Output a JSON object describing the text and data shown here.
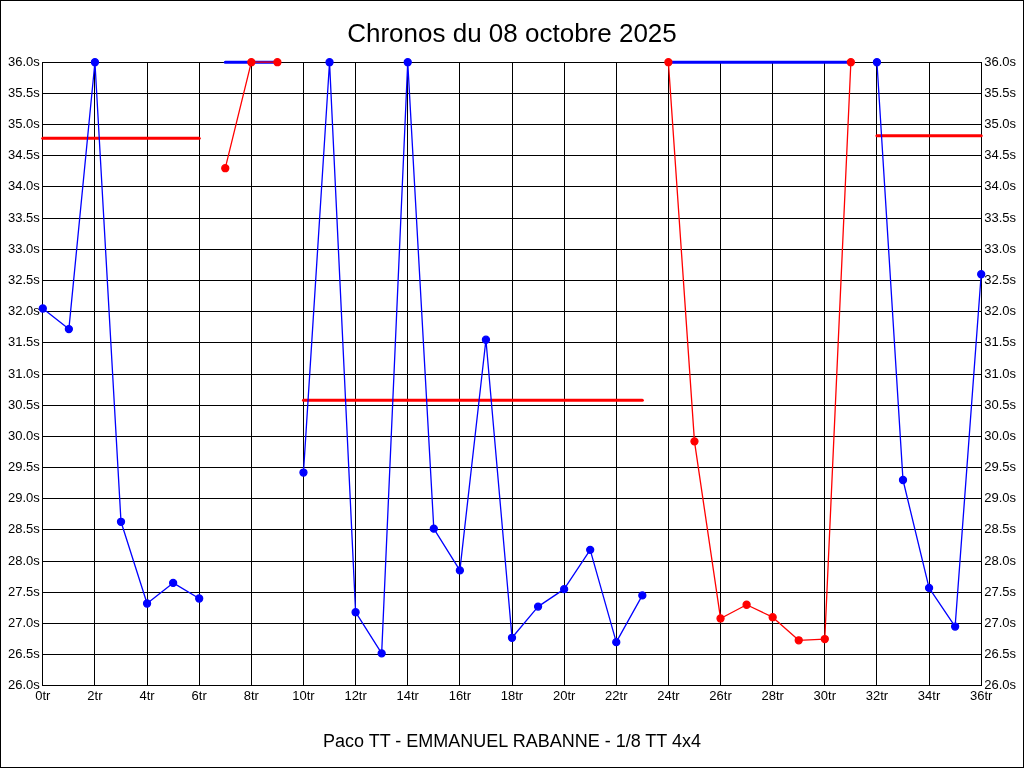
{
  "chart_data": {
    "type": "line",
    "title": "Chronos du 08 octobre 2025",
    "xlabel": "Paco TT - EMMANUEL RABANNE - 1/8 TT 4x4",
    "series": [
      {
        "color": "#0000ff",
        "marker": "circle",
        "x": [
          0,
          1,
          2,
          3,
          4,
          5,
          6,
          7,
          8,
          9,
          10,
          11,
          12,
          13,
          14,
          15,
          16,
          17,
          18,
          19,
          20,
          21,
          22,
          23,
          24,
          25,
          26,
          27,
          28,
          29,
          30,
          31,
          32,
          33,
          34,
          35,
          36
        ],
        "values": [
          32.05,
          31.72,
          36.0,
          28.63,
          27.32,
          27.65,
          27.4,
          null,
          null,
          null,
          29.42,
          36.0,
          27.18,
          26.52,
          36.0,
          28.52,
          27.85,
          31.55,
          26.77,
          27.27,
          27.55,
          28.18,
          26.7,
          27.45,
          null,
          null,
          null,
          null,
          null,
          null,
          null,
          null,
          36.0,
          29.3,
          27.57,
          26.95,
          32.6
        ]
      },
      {
        "color": "#0000ff",
        "marker": "none",
        "x": [
          7,
          9
        ],
        "values": [
          36.0,
          36.0
        ]
      },
      {
        "color": "#0000ff",
        "marker": "none",
        "x": [
          24,
          31
        ],
        "values": [
          36.0,
          36.0
        ]
      },
      {
        "color": "#ff0000",
        "marker": "circle",
        "x": [
          7,
          8,
          9
        ],
        "values": [
          34.3,
          36.0,
          36.0
        ]
      },
      {
        "color": "#ff0000",
        "marker": "circle",
        "x": [
          24,
          25,
          26,
          27,
          28,
          29,
          30,
          31
        ],
        "values": [
          36.0,
          29.92,
          27.08,
          27.3,
          27.1,
          26.73,
          26.75,
          36.0
        ]
      },
      {
        "color": "#ff0000",
        "marker": "none",
        "x": [
          0,
          6
        ],
        "values": [
          34.78,
          34.78
        ]
      },
      {
        "color": "#ff0000",
        "marker": "none",
        "x": [
          10,
          23
        ],
        "values": [
          30.58,
          30.58
        ]
      },
      {
        "color": "#ff0000",
        "marker": "none",
        "x": [
          32,
          36
        ],
        "values": [
          34.82,
          34.82
        ]
      }
    ],
    "xlim": [
      0,
      36
    ],
    "xticks": [
      {
        "value": 0,
        "label": "0tr"
      },
      {
        "value": 2,
        "label": "2tr"
      },
      {
        "value": 4,
        "label": "4tr"
      },
      {
        "value": 6,
        "label": "6tr"
      },
      {
        "value": 8,
        "label": "8tr"
      },
      {
        "value": 10,
        "label": "10tr"
      },
      {
        "value": 12,
        "label": "12tr"
      },
      {
        "value": 14,
        "label": "14tr"
      },
      {
        "value": 16,
        "label": "16tr"
      },
      {
        "value": 18,
        "label": "18tr"
      },
      {
        "value": 20,
        "label": "20tr"
      },
      {
        "value": 22,
        "label": "22tr"
      },
      {
        "value": 24,
        "label": "24tr"
      },
      {
        "value": 26,
        "label": "26tr"
      },
      {
        "value": 28,
        "label": "28tr"
      },
      {
        "value": 30,
        "label": "30tr"
      },
      {
        "value": 32,
        "label": "32tr"
      },
      {
        "value": 34,
        "label": "34tr"
      },
      {
        "value": 36,
        "label": "36tr"
      }
    ],
    "ylim": [
      26,
      36
    ],
    "yticks": [
      {
        "value": 26,
        "label": "26.0s"
      },
      {
        "value": 26.5,
        "label": "26.5s"
      },
      {
        "value": 27,
        "label": "27.0s"
      },
      {
        "value": 27.5,
        "label": "27.5s"
      },
      {
        "value": 28,
        "label": "28.0s"
      },
      {
        "value": 28.5,
        "label": "28.5s"
      },
      {
        "value": 29,
        "label": "29.0s"
      },
      {
        "value": 29.5,
        "label": "29.5s"
      },
      {
        "value": 30,
        "label": "30.0s"
      },
      {
        "value": 30.5,
        "label": "30.5s"
      },
      {
        "value": 31,
        "label": "31.0s"
      },
      {
        "value": 31.5,
        "label": "31.5s"
      },
      {
        "value": 32,
        "label": "32.0s"
      },
      {
        "value": 32.5,
        "label": "32.5s"
      },
      {
        "value": 33,
        "label": "33.0s"
      },
      {
        "value": 33.5,
        "label": "33.5s"
      },
      {
        "value": 34,
        "label": "34.0s"
      },
      {
        "value": 34.5,
        "label": "34.5s"
      },
      {
        "value": 35,
        "label": "35.0s"
      },
      {
        "value": 35.5,
        "label": "35.5s"
      },
      {
        "value": 36,
        "label": "36.0s"
      }
    ],
    "y2lim": [
      26,
      36
    ],
    "y2ticks": [
      {
        "value": 26,
        "label": "26.0s"
      },
      {
        "value": 26.5,
        "label": "26.5s"
      },
      {
        "value": 27,
        "label": "27.0s"
      },
      {
        "value": 27.5,
        "label": "27.5s"
      },
      {
        "value": 28,
        "label": "28.0s"
      },
      {
        "value": 28.5,
        "label": "28.5s"
      },
      {
        "value": 29,
        "label": "29.0s"
      },
      {
        "value": 29.5,
        "label": "29.5s"
      },
      {
        "value": 30,
        "label": "30.0s"
      },
      {
        "value": 30.5,
        "label": "30.5s"
      },
      {
        "value": 31,
        "label": "31.0s"
      },
      {
        "value": 31.5,
        "label": "31.5s"
      },
      {
        "value": 32,
        "label": "32.0s"
      },
      {
        "value": 32.5,
        "label": "32.5s"
      },
      {
        "value": 33,
        "label": "33.0s"
      },
      {
        "value": 33.5,
        "label": "33.5s"
      },
      {
        "value": 34,
        "label": "34.0s"
      },
      {
        "value": 34.5,
        "label": "34.5s"
      },
      {
        "value": 35,
        "label": "35.0s"
      },
      {
        "value": 35.5,
        "label": "35.5s"
      },
      {
        "value": 36,
        "label": "36.0s"
      }
    ],
    "grid": true,
    "legend": false
  }
}
